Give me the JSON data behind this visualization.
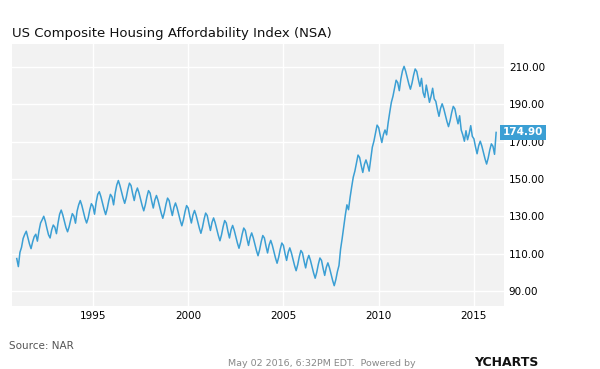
{
  "title": "US Composite Housing Affordability Index (NSA)",
  "line_color": "#3b9fd4",
  "bg_color": "#ffffff",
  "plot_bg_color": "#f2f2f2",
  "grid_color": "#ffffff",
  "yticks": [
    90.0,
    110.0,
    130.0,
    150.0,
    170.0,
    190.0,
    210.0
  ],
  "ylim": [
    82,
    222
  ],
  "xlim_start": 1990.75,
  "xlim_end": 2016.58,
  "xticks": [
    1995,
    2000,
    2005,
    2010,
    2015
  ],
  "last_value": 174.9,
  "last_value_label": "174.90",
  "source_text": "Source: NAR",
  "footer_text": "May 02 2016, 6:32PM EDT.  Powered by",
  "ycharts_text": "YCHARTS",
  "line_width": 1.1,
  "start_year": 1991,
  "start_month": 1,
  "values": [
    107.5,
    103.2,
    110.8,
    113.5,
    118.2,
    120.4,
    122.1,
    118.6,
    115.3,
    112.8,
    116.4,
    119.2,
    120.5,
    116.8,
    122.3,
    126.5,
    128.2,
    130.1,
    127.4,
    123.6,
    120.2,
    118.5,
    122.8,
    125.4,
    124.2,
    120.8,
    126.5,
    131.2,
    133.4,
    130.8,
    127.5,
    124.1,
    121.8,
    124.5,
    128.2,
    131.5,
    130.2,
    126.4,
    132.8,
    136.2,
    138.5,
    135.9,
    132.4,
    129.0,
    126.5,
    129.2,
    133.5,
    136.8,
    135.5,
    131.2,
    137.5,
    141.8,
    143.2,
    140.6,
    137.2,
    133.8,
    131.0,
    134.2,
    138.5,
    141.8,
    140.5,
    136.2,
    142.5,
    146.8,
    149.2,
    146.5,
    143.2,
    139.8,
    137.0,
    140.2,
    144.5,
    147.8,
    146.5,
    142.2,
    138.5,
    142.8,
    145.2,
    142.6,
    139.2,
    135.8,
    133.0,
    136.2,
    140.5,
    143.8,
    142.5,
    138.2,
    134.5,
    138.8,
    141.2,
    138.6,
    135.2,
    131.8,
    129.0,
    132.2,
    136.5,
    139.8,
    138.5,
    134.2,
    130.5,
    134.8,
    137.2,
    134.6,
    131.2,
    127.8,
    125.0,
    128.2,
    132.5,
    135.8,
    134.5,
    130.2,
    126.5,
    130.8,
    133.2,
    130.6,
    127.2,
    123.8,
    121.0,
    124.2,
    128.5,
    131.8,
    130.5,
    126.2,
    122.5,
    126.8,
    129.2,
    126.6,
    123.2,
    119.8,
    117.0,
    120.2,
    124.5,
    127.8,
    126.5,
    122.2,
    118.5,
    122.8,
    125.2,
    122.6,
    119.2,
    115.8,
    113.0,
    116.2,
    120.5,
    123.8,
    122.5,
    118.2,
    114.5,
    118.8,
    121.2,
    118.6,
    115.2,
    111.8,
    109.0,
    112.2,
    116.5,
    119.8,
    118.5,
    114.2,
    110.5,
    114.8,
    117.2,
    114.6,
    111.2,
    107.8,
    105.0,
    108.2,
    112.5,
    115.8,
    114.5,
    110.2,
    106.5,
    110.8,
    113.2,
    110.6,
    107.2,
    103.8,
    101.0,
    104.2,
    108.5,
    111.8,
    110.5,
    106.2,
    102.5,
    106.8,
    109.2,
    106.6,
    103.2,
    99.8,
    97.0,
    100.2,
    104.5,
    107.8,
    106.5,
    102.2,
    98.5,
    102.8,
    105.2,
    102.6,
    99.2,
    95.8,
    93.0,
    96.2,
    100.5,
    103.8,
    112.5,
    118.2,
    124.5,
    130.8,
    136.2,
    133.6,
    140.2,
    145.8,
    151.0,
    154.2,
    158.5,
    162.8,
    161.5,
    157.2,
    153.5,
    157.8,
    160.2,
    157.6,
    154.2,
    160.8,
    167.0,
    170.2,
    174.5,
    178.8,
    177.5,
    173.2,
    169.5,
    173.8,
    176.2,
    173.6,
    180.2,
    185.8,
    191.0,
    194.2,
    198.5,
    202.8,
    201.5,
    197.2,
    203.5,
    207.8,
    210.2,
    207.6,
    204.2,
    200.8,
    198.0,
    201.2,
    205.5,
    208.8,
    207.5,
    203.2,
    199.5,
    203.8,
    196.2,
    193.6,
    200.2,
    195.8,
    191.0,
    194.2,
    198.5,
    192.8,
    191.5,
    187.2,
    183.5,
    187.8,
    190.2,
    187.6,
    184.2,
    180.8,
    178.0,
    181.2,
    185.5,
    188.8,
    187.5,
    183.2,
    179.5,
    183.8,
    176.2,
    173.6,
    170.2,
    175.8,
    171.0,
    174.2,
    178.5,
    172.8,
    171.5,
    167.2,
    163.5,
    167.8,
    170.2,
    167.6,
    164.2,
    160.8,
    158.0,
    161.2,
    165.5,
    168.8,
    167.5,
    163.2,
    174.9
  ]
}
